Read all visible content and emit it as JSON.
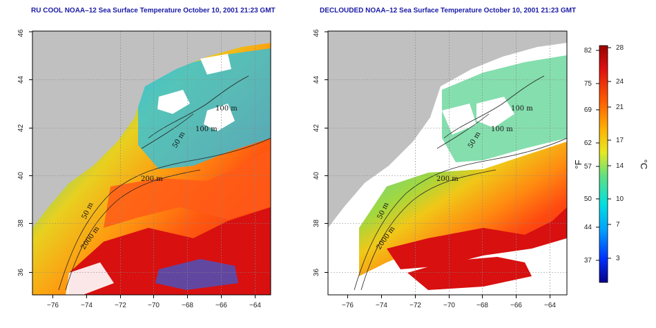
{
  "panels": [
    {
      "title": "RU COOL NOAA–12 Sea Surface Temperature October 10, 2001 21:23 GMT",
      "contour_labels": [
        "100 m",
        "100 m",
        "50 m",
        "200 m",
        "50 m",
        "2000 m"
      ]
    },
    {
      "title": "DECLOUDED NOAA–12 Sea Surface Temperature October 10, 2001 21:23 GMT",
      "contour_labels": [
        "100 m",
        "100 m",
        "50 m",
        "200 m",
        "50 m",
        "2000 m"
      ]
    }
  ],
  "axes": {
    "x_ticks": [
      "−76",
      "−74",
      "−72",
      "−70",
      "−68",
      "−66",
      "−64"
    ],
    "y_ticks": [
      "36",
      "38",
      "40",
      "42",
      "44",
      "46"
    ]
  },
  "colorbar": {
    "fahrenheit_label": "°F",
    "celsius_label": "°C",
    "fahrenheit_ticks": [
      "82",
      "75",
      "69",
      "62",
      "57",
      "50",
      "44",
      "37"
    ],
    "celsius_ticks": [
      "28",
      "24",
      "21",
      "17",
      "14",
      "10",
      "7",
      "3"
    ]
  },
  "colors": {
    "land": "#c0c0c0",
    "cloud": "#ffffff",
    "title": "#1a1aa6"
  }
}
